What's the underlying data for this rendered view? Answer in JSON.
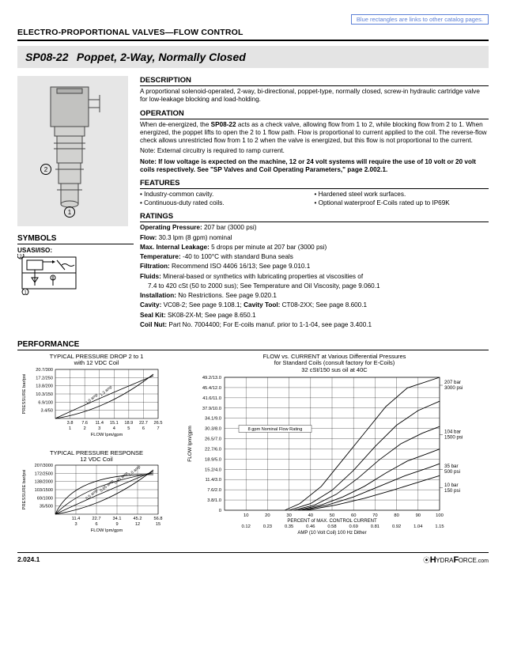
{
  "top_link": "Blue rectangles are links to other catalog pages.",
  "section_header": "ELECTRO-PROPORTIONAL VALVES—FLOW CONTROL",
  "title_model": "SP08-22",
  "title_desc": "Poppet, 2-Way, Normally Closed",
  "description": {
    "h": "DESCRIPTION",
    "body": "A proportional solenoid-operated, 2-way, bi-directional, poppet-type, normally closed, screw-in hydraulic cartridge valve for low-leakage blocking and load-holding."
  },
  "operation": {
    "h": "OPERATION",
    "p1a": "When de-energized, the ",
    "p1_model": "SP08-22",
    "p1b": " acts as a check valve, allowing flow from 1 to 2, while blocking flow from 2 to 1. When energized, the poppet lifts to open the 2 to 1 flow path. Flow is proportional to current applied to the coil. The reverse-flow check allows unrestricted flow from 1 to 2 when the valve is energized, but this flow is not proportional to the current.",
    "p2": "Note: External circuitry is required to ramp current.",
    "p3": "Note: If low voltage is expected on the machine, 12 or 24 volt systems will require the use of 10 volt or 20 volt coils respectively. See \"SP Valves and Coil Operating Parameters,\" page 2.002.1."
  },
  "features": {
    "h": "FEATURES",
    "b1": "• Industry-common cavity.",
    "b2": "• Hardened steel work surfaces.",
    "b3": "• Continuous-duty rated coils.",
    "b4": "• Optional waterproof E-Coils rated up to IP69K"
  },
  "ratings": {
    "h": "RATINGS",
    "r1_l": "Operating Pressure:",
    "r1_v": " 207 bar (3000 psi)",
    "r2_l": "Flow:",
    "r2_v": " 30.3 lpm (8 gpm) nominal",
    "r3_l": "Max. Internal Leakage:",
    "r3_v": " 5 drops per minute at 207 bar (3000 psi)",
    "r4_l": "Temperature:",
    "r4_v": " -40 to 100°C with standard Buna seals",
    "r5_l": "Filtration:",
    "r5_v": " Recommend ISO 4406 16/13; See page 9.010.1",
    "r6_l": "Fluids:",
    "r6_v": " Mineral-based or synthetics with lubricating properties at viscosities of",
    "r6_v2": "7.4 to 420 cSt (50 to 2000 sus); See Temperature and Oil Viscosity, page 9.060.1",
    "r7_l": "Installation:",
    "r7_v": " No Restrictions. See page 9.020.1",
    "r8_l": "Cavity:",
    "r8_v": " VC08-2; See page 9.108.1; ",
    "r8_l2": "Cavity Tool:",
    "r8_v2": " CT08-2XX; See page 8.600.1",
    "r9_l": "Seal Kit:",
    "r9_v": " SK08-2X-M; See page 8.650.1",
    "r10_l": "Coil Nut:",
    "r10_v": " Part No. 7004400; For E-coils manuf. prior to 1-1-04, see page 3.400.1"
  },
  "symbols_h": "SYMBOLS",
  "usasi": "USASI/ISO:",
  "performance_h": "PERFORMANCE",
  "chart1": {
    "title1": "TYPICAL PRESSURE DROP 2 to 1",
    "title2": "with 12 VDC Coil",
    "ylabel": "PRESSURE bar/psi",
    "xlabel": "FLOW lpm/gpm",
    "yticks": [
      "20.7/300",
      "17.2/250",
      "13.8/200",
      "10.3/150",
      "6.9/100",
      "3.4/50"
    ],
    "xticks_top": [
      "3.8",
      "7.6",
      "11.4",
      "15.1",
      "18.9",
      "22.7",
      "26.5"
    ],
    "xticks_bot": [
      "1",
      "2",
      "3",
      "4",
      "5",
      "6",
      "7"
    ],
    "ann1": "1.0 amp",
    "ann2": "1.3 amp",
    "line1": [
      [
        0,
        0
      ],
      [
        15,
        20
      ],
      [
        30,
        40
      ],
      [
        55,
        78
      ],
      [
        80,
        100
      ]
    ],
    "line2": [
      [
        0,
        0
      ],
      [
        25,
        22
      ],
      [
        55,
        48
      ],
      [
        85,
        80
      ],
      [
        100,
        100
      ]
    ],
    "colors": {
      "grid": "#000",
      "bg": "#fff",
      "line": "#000"
    }
  },
  "chart2": {
    "title1": "TYPICAL PRESSURE RESPONSE",
    "title2": "12 VDC Coil",
    "ylabel": "PRESSURE bar/psi",
    "xlabel": "FLOW lpm/gpm",
    "yticks": [
      "207/3000",
      "172/2500",
      "138/2000",
      "103/1500",
      "69/1000",
      "35/500"
    ],
    "xticks_top": [
      "11.4",
      "22.7",
      "34.1",
      "45.2",
      "56.8"
    ],
    "xticks_bot": [
      "3",
      "6",
      "9",
      "12",
      "15"
    ],
    "anns": [
      "0.5 amp",
      "0.65 amp",
      "0.85 amp",
      "1.0 amp"
    ]
  },
  "chart3": {
    "title1": "FLOW vs. CURRENT at Various Differential Pressures",
    "title2": "for Standard Coils (consult factory for E-Coils)",
    "title3": "32 cSt/150 sus oil at 40C",
    "ylabel": "FLOW lpm/gpm",
    "yticks": [
      "49.2/13.0",
      "45.4/12.0",
      "41.6/11.0",
      "37.9/10.0",
      "34.1/9.0",
      "30.3/8.0",
      "26.5/7.0",
      "22.7/6.0",
      "18.9/5.0",
      "15.2/4.0",
      "11.4/3.0",
      "7.6/2.0",
      "3.8/1.0",
      "0"
    ],
    "xticks": [
      "10",
      "20",
      "30",
      "40",
      "50",
      "60",
      "70",
      "80",
      "90",
      "100"
    ],
    "xlabel": "PERCENT of MAX. CONTROL CURRENT",
    "x2ticks": [
      "0.12",
      "0.23",
      "0.35",
      "0.46",
      "0.58",
      "0.69",
      "0.81",
      "0.92",
      "1.04",
      "1.15"
    ],
    "x2label": "AMP (10 Volt Coil) 100 Hz Dither",
    "ann_nominal": "8 gpm Nominal Flow Rating",
    "side_labels": [
      {
        "t1": "207 bar",
        "t2": "3000 psi"
      },
      {
        "t1": "104 bar",
        "t2": "1500 psi"
      },
      {
        "t1": "35 bar",
        "t2": "500 psi"
      },
      {
        "t1": "10 bar",
        "t2": "150 psi"
      }
    ],
    "curves": [
      [
        [
          28,
          0
        ],
        [
          35,
          5
        ],
        [
          45,
          18
        ],
        [
          55,
          38
        ],
        [
          65,
          58
        ],
        [
          75,
          78
        ],
        [
          85,
          92
        ],
        [
          100,
          100
        ]
      ],
      [
        [
          30,
          0
        ],
        [
          40,
          5
        ],
        [
          50,
          15
        ],
        [
          60,
          30
        ],
        [
          70,
          48
        ],
        [
          80,
          64
        ],
        [
          90,
          75
        ],
        [
          100,
          82
        ]
      ],
      [
        [
          32,
          0
        ],
        [
          42,
          4
        ],
        [
          52,
          12
        ],
        [
          62,
          24
        ],
        [
          72,
          38
        ],
        [
          82,
          50
        ],
        [
          92,
          58
        ],
        [
          100,
          63
        ]
      ],
      [
        [
          34,
          0
        ],
        [
          45,
          4
        ],
        [
          55,
          10
        ],
        [
          65,
          18
        ],
        [
          75,
          28
        ],
        [
          85,
          37
        ],
        [
          95,
          43
        ],
        [
          100,
          46
        ]
      ],
      [
        [
          36,
          0
        ],
        [
          48,
          4
        ],
        [
          60,
          10
        ],
        [
          72,
          18
        ],
        [
          84,
          26
        ],
        [
          95,
          32
        ],
        [
          100,
          35
        ]
      ],
      [
        [
          38,
          0
        ],
        [
          52,
          4
        ],
        [
          65,
          9
        ],
        [
          78,
          15
        ],
        [
          90,
          21
        ],
        [
          100,
          26
        ]
      ]
    ],
    "colors": {
      "grid": "#000",
      "line": "#000",
      "bg": "#fff"
    }
  },
  "footer_left": "2.024.1",
  "footer_logo_pre": "⦿",
  "footer_logo1": "H",
  "footer_logo2": "YDRA",
  "footer_logo3": "F",
  "footer_logo4": "ORCE",
  "footer_logo_suf": ".com"
}
